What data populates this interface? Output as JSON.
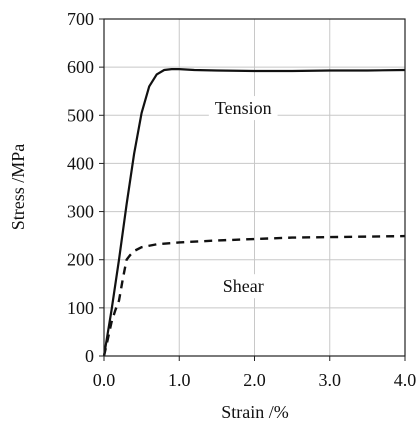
{
  "chart_data": {
    "type": "line",
    "title": "",
    "xlabel": "Strain /%",
    "ylabel": "Stress /MPa",
    "xlim": [
      0,
      4
    ],
    "ylim": [
      0,
      700
    ],
    "grid": true,
    "x_ticks": [
      0,
      1,
      2,
      3,
      4
    ],
    "x_tick_labels": [
      "0.0",
      "1.0",
      "2.0",
      "3.0",
      "4.0"
    ],
    "y_ticks": [
      0,
      100,
      200,
      300,
      400,
      500,
      600,
      700
    ],
    "y_tick_labels": [
      "0",
      "100",
      "200",
      "300",
      "400",
      "500",
      "600",
      "700"
    ],
    "series": [
      {
        "color": "#111111",
        "style": "solid",
        "x": [
          0,
          0.1,
          0.2,
          0.3,
          0.4,
          0.5,
          0.6,
          0.7,
          0.8,
          0.9,
          1.0,
          1.2,
          1.5,
          2.0,
          2.5,
          3.0,
          3.5,
          4.0
        ],
        "y": [
          0,
          95,
          200,
          315,
          420,
          505,
          560,
          585,
          594,
          596,
          596,
          594,
          593,
          592,
          592,
          593,
          593,
          594
        ]
      },
      {
        "color": "#111111",
        "style": "dashed",
        "x": [
          0,
          0.05,
          0.1,
          0.15,
          0.2,
          0.25,
          0.3,
          0.35,
          0.4,
          0.5,
          0.7,
          1.0,
          1.5,
          2.0,
          2.5,
          3.0,
          3.5,
          4.0
        ],
        "y": [
          0,
          35,
          70,
          95,
          115,
          160,
          200,
          210,
          218,
          226,
          232,
          236,
          240,
          243,
          246,
          247,
          248,
          249
        ]
      }
    ],
    "annotations": [
      {
        "text": "Tension",
        "x": 1.85,
        "y": 515
      },
      {
        "text": "Shear",
        "x": 1.85,
        "y": 145
      }
    ]
  }
}
